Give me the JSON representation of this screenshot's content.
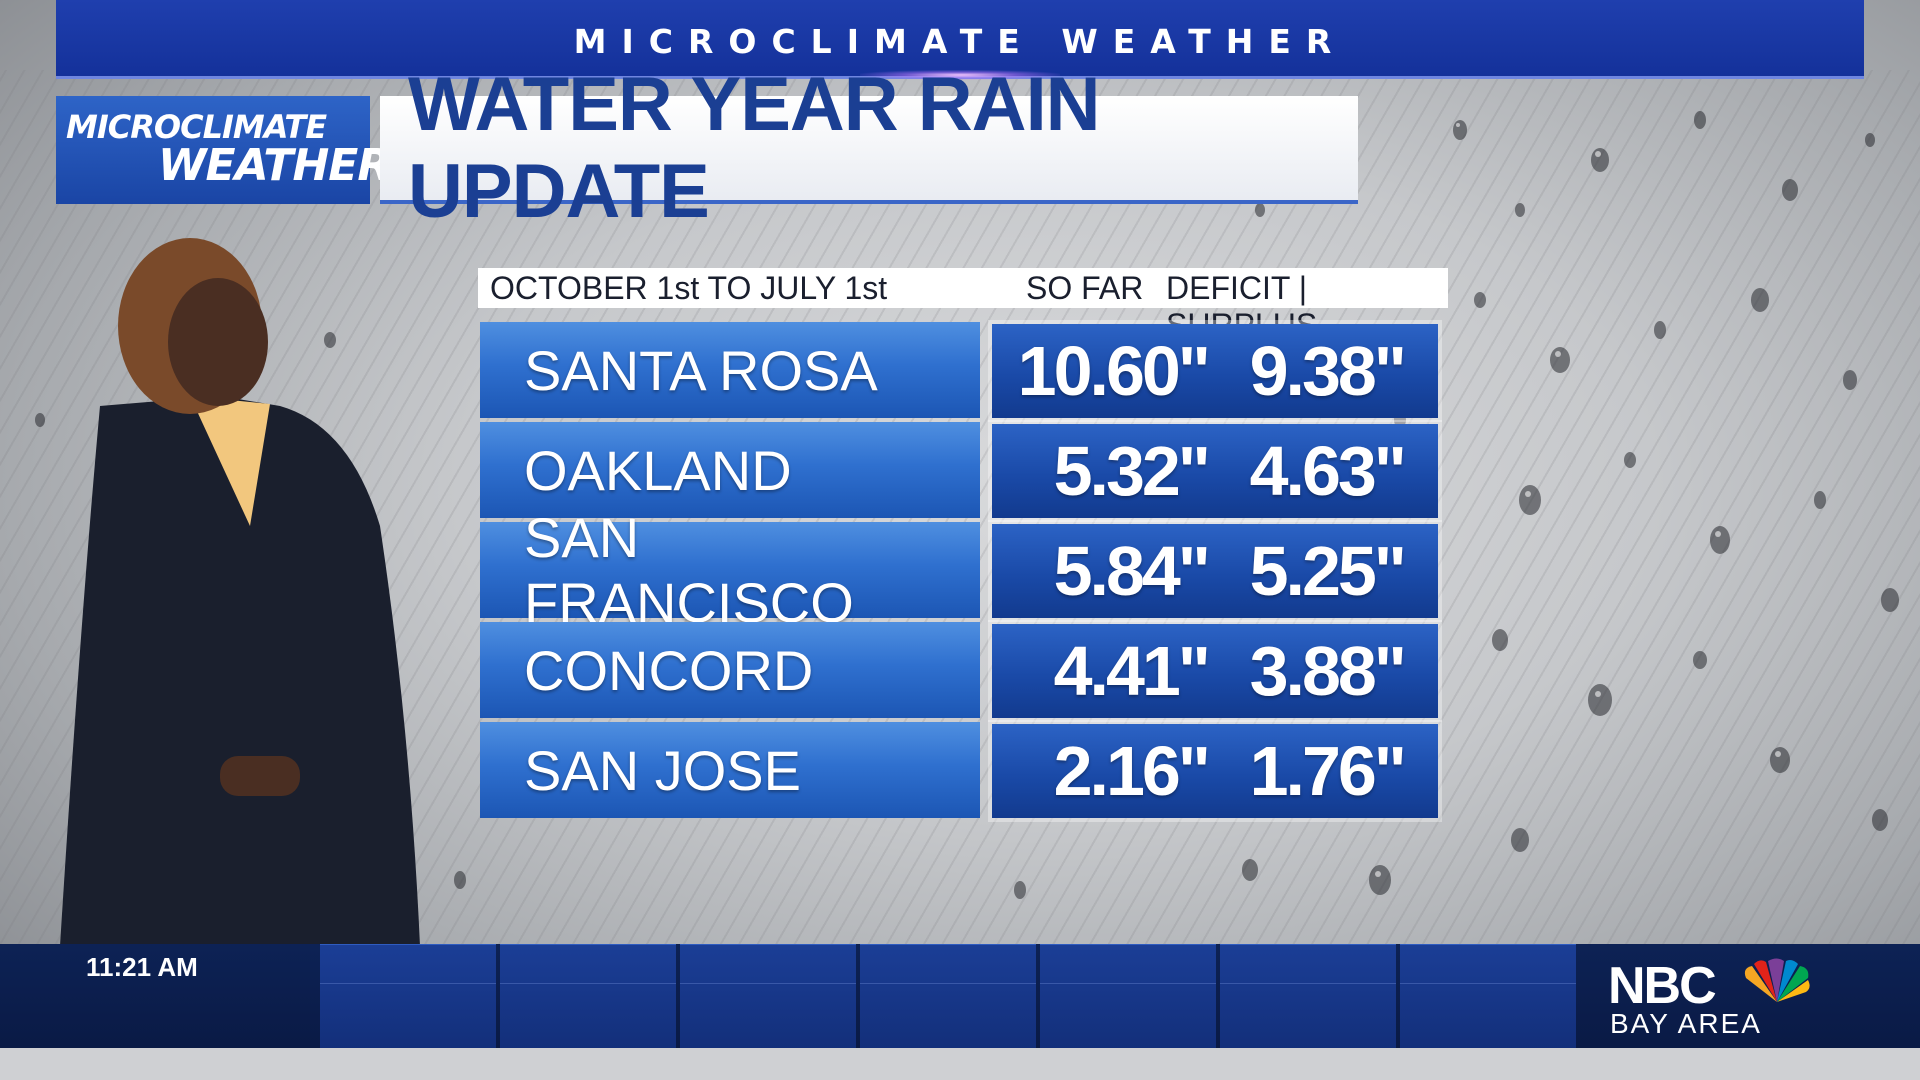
{
  "banner": {
    "text": "MICROCLIMATE WEATHER"
  },
  "logo": {
    "line1": "MICROCLIMATE",
    "line2": "WEATHER"
  },
  "title": "WATER YEAR RAIN UPDATE",
  "table": {
    "headers": {
      "range": "OCTOBER 1st TO JULY 1st",
      "so_far": "SO FAR",
      "deficit_surplus": "DEFICIT | SURPLUS"
    },
    "rows": [
      {
        "city": "SANTA ROSA",
        "so_far": "10.60\"",
        "deficit_surplus": "9.38\""
      },
      {
        "city": "OAKLAND",
        "so_far": "5.32\"",
        "deficit_surplus": "4.63\""
      },
      {
        "city": "SAN FRANCISCO",
        "so_far": "5.84\"",
        "deficit_surplus": "5.25\""
      },
      {
        "city": "CONCORD",
        "so_far": "4.41\"",
        "deficit_surplus": "3.88\""
      },
      {
        "city": "SAN JOSE",
        "so_far": "2.16\"",
        "deficit_surplus": "1.76\""
      }
    ]
  },
  "bottom": {
    "time": "11:21 AM",
    "network": {
      "name": "NBC",
      "region": "BAY AREA"
    }
  },
  "colors": {
    "banner_blue": "#1f3fae",
    "title_text": "#1b3f93",
    "cell_blue": "#2f70cf",
    "value_blue": "#1a4aa8",
    "bottom_bar": "#0d2255"
  }
}
